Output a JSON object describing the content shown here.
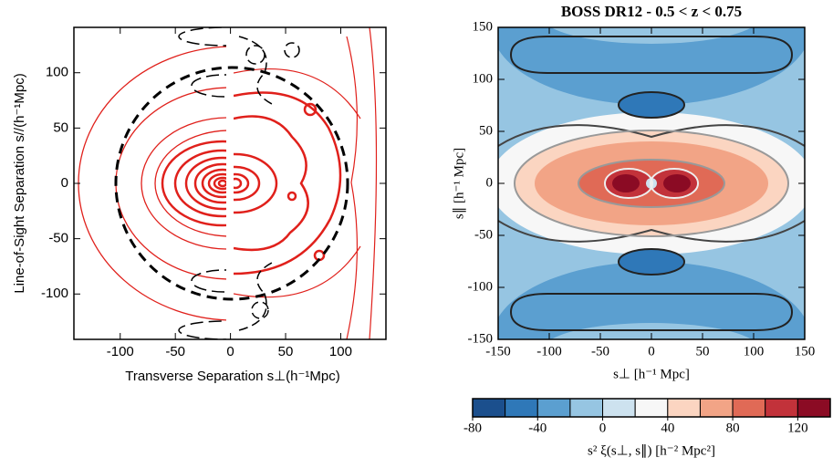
{
  "chart_data": [
    {
      "type": "contour",
      "xlabel": "Transverse Separation s⊥(h⁻¹Mpc)",
      "ylabel": "Line-of-Sight Separation s//(h⁻¹Mpc)",
      "xlim": [
        -142,
        141
      ],
      "ylim": [
        -141,
        141
      ],
      "xticks": [
        -100,
        -50,
        0,
        50,
        100
      ],
      "yticks": [
        -100,
        -50,
        0,
        50,
        100
      ]
    },
    {
      "type": "contour",
      "title": "BOSS DR12 - 0.5 < z < 0.75",
      "xlabel": "s⊥ [h⁻¹ Mpc]",
      "ylabel": "s∥ [h⁻¹ Mpc]",
      "xlim": [
        -150,
        150
      ],
      "ylim": [
        -150,
        150
      ],
      "xticks": [
        -150,
        -100,
        -50,
        0,
        50,
        100,
        150
      ],
      "yticks": [
        -150,
        -100,
        -50,
        0,
        50,
        100,
        150
      ],
      "colorbar": {
        "label": "s² ξ(s⊥, s∥) [h⁻² Mpc²]",
        "lim": [
          -80,
          140
        ],
        "ticks": [
          -80,
          -40,
          0,
          40,
          80,
          120
        ],
        "colors": [
          "#1b4f8d",
          "#2f78b8",
          "#5b9fd0",
          "#96c5e2",
          "#cde2ef",
          "#f7f7f7",
          "#fbd5c1",
          "#f2a486",
          "#e06a56",
          "#c2323a",
          "#8b0b24"
        ]
      }
    }
  ]
}
